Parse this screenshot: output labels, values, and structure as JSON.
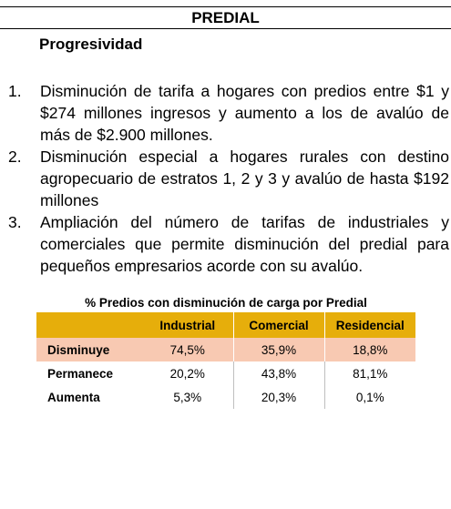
{
  "header": {
    "title": "PREDIAL",
    "subtitle": "Progresividad"
  },
  "list": [
    {
      "number": "1.",
      "text": "Disminución de tarifa a hogares con predios entre $1 y $274 millones ingresos y aumento a los de avalúo de más de $2.900 millones."
    },
    {
      "number": "2.",
      "text": "Disminución especial a hogares rurales con destino agropecuario de estratos 1, 2 y 3 y avalúo de hasta $192 millones"
    },
    {
      "number": "3.",
      "text": "Ampliación del número de tarifas de industriales y comerciales que permite disminución del predial para pequeños empresarios acorde con su avalúo."
    }
  ],
  "table": {
    "title": "% Predios con disminución de carga por Predial",
    "columns": [
      "",
      "Industrial",
      "Comercial",
      "Residencial"
    ],
    "rows": [
      {
        "label": "Disminuye",
        "values": [
          "74,5%",
          "35,9%",
          "18,8%"
        ]
      },
      {
        "label": "Permanece",
        "values": [
          "20,2%",
          "43,8%",
          "81,1%"
        ]
      },
      {
        "label": "Aumenta",
        "values": [
          "5,3%",
          "20,3%",
          "0,1%"
        ]
      }
    ]
  },
  "colors": {
    "header_fill": "#E6AE0B",
    "highlight_row": "#F8C9B2"
  }
}
